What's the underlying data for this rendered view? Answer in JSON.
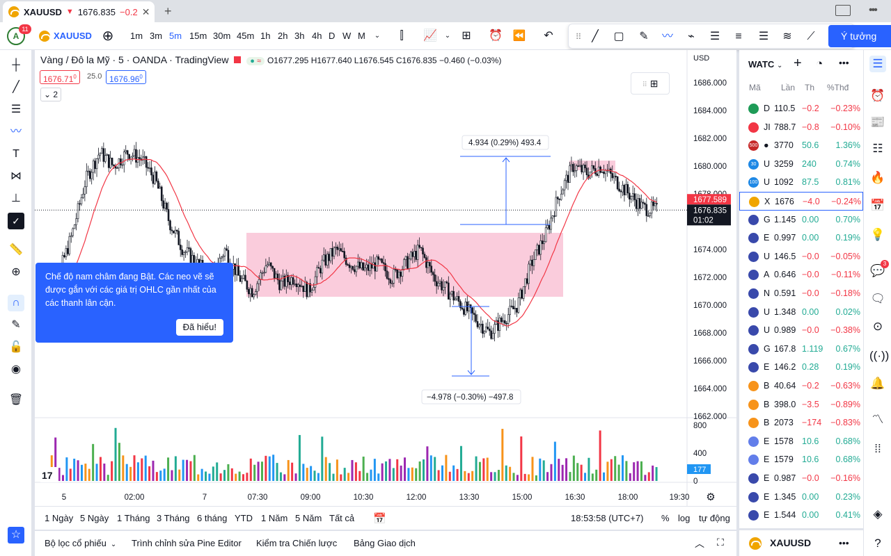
{
  "browser": {
    "tab_symbol": "XAUUSD",
    "tab_arrow": "▼",
    "tab_price": "1676.835",
    "tab_change": "−0.2"
  },
  "toolbar": {
    "avatar_letter": "A",
    "avatar_badge": "11",
    "symbol": "XAUUSD",
    "intervals": [
      "1m",
      "3m",
      "5m",
      "15m",
      "30m",
      "45m",
      "1h",
      "2h",
      "3h",
      "4h",
      "D",
      "W",
      "M"
    ],
    "active_interval": "5m",
    "ideas_label": "Ý tưởng"
  },
  "chart": {
    "legend_title": "Vàng / Đô la Mỹ · 5 · OANDA · TradingView",
    "ohlc": {
      "o_label": "O",
      "o": "1677.295",
      "h_label": "H",
      "h": "1677.640",
      "l_label": "L",
      "l": "1676.545",
      "c_label": "C",
      "c": "1676.835",
      "change": "−0.460 (−0.03%)"
    },
    "bid": "1676.71",
    "bid_sup": "0",
    "spread": "25.0",
    "ask": "1676.96",
    "ask_sup": "0",
    "collapse_count": "2",
    "currency": "USD",
    "current_price": "1676.835",
    "countdown": "01:02",
    "tag_price": "1677.589",
    "measure_up": "4.934 (0.29%) 493.4",
    "measure_down": "−4.978 (−0.30%) −497.8",
    "volume_tag": "177",
    "price_ticks": [
      "1686.000",
      "1684.000",
      "1682.000",
      "1680.000",
      "1678.000",
      "1676.000",
      "1674.000",
      "1672.000",
      "1670.000",
      "1668.000",
      "1666.000",
      "1664.000",
      "1662.000"
    ],
    "volume_ticks": [
      "800",
      "400",
      "0"
    ],
    "time_ticks": [
      "5",
      "02:00",
      "7",
      "07:30",
      "09:00",
      "10:30",
      "12:00",
      "13:30",
      "15:00",
      "16:30",
      "18:00",
      "19:30"
    ]
  },
  "chart_data": {
    "type": "candlestick",
    "title": "Vàng / Đô la Mỹ · 5 · OANDA",
    "ylim": [
      1662,
      1687
    ],
    "close_points": [
      1671,
      1672,
      1675,
      1679,
      1681,
      1680,
      1681,
      1680.5,
      1679,
      1676,
      1674,
      1673,
      1672,
      1674,
      1672,
      1671,
      1673,
      1671.5,
      1672,
      1671,
      1673,
      1674,
      1673,
      1672.5,
      1673,
      1672,
      1673,
      1674,
      1672,
      1671,
      1670,
      1669,
      1668,
      1669,
      1670,
      1673,
      1675,
      1678,
      1680,
      1679.5,
      1680,
      1679,
      1678,
      1677,
      1676.835
    ]
  },
  "timebar": {
    "ranges": [
      "1 Ngày",
      "5 Ngày",
      "1 Tháng",
      "3 Tháng",
      "6 tháng",
      "YTD",
      "1 Năm",
      "5 Năm",
      "Tất cả"
    ],
    "clock": "18:53:58 (UTC+7)",
    "pct": "%",
    "log": "log",
    "auto": "tự động"
  },
  "bottom_tabs": [
    "Bộ lọc cổ phiếu",
    "Trình chỉnh sửa Pine Editor",
    "Kiểm tra Chiến lược",
    "Bảng Giao dịch"
  ],
  "tooltip": {
    "text": "Chế độ nam châm đang Bật. Các neo vẽ sẽ được gắn với các giá trị OHLC gần nhất của các thanh lân cận.",
    "button": "Đã hiểu!"
  },
  "watchlist": {
    "title": "WATC",
    "headers": [
      "Mã",
      "Lần",
      "Th",
      "%Thđ"
    ],
    "rows": [
      {
        "icon": "D",
        "sym": "D",
        "last": "110.5",
        "chg": "−0.2",
        "pct": "−0.23%",
        "up": false,
        "color": "#1e9b57"
      },
      {
        "icon": "●",
        "sym": "JI",
        "last": "788.7",
        "chg": "−0.8",
        "pct": "−0.10%",
        "up": false,
        "color": "#f23645"
      },
      {
        "icon": "500",
        "sym": "●",
        "last": "3770",
        "chg": "50.6",
        "pct": "1.36%",
        "up": true,
        "color": "#c62828"
      },
      {
        "icon": "30",
        "sym": "U",
        "last": "3259",
        "chg": "240",
        "pct": "0.74%",
        "up": true,
        "color": "#1e88e5"
      },
      {
        "icon": "100",
        "sym": "U",
        "last": "1092",
        "chg": "87.5",
        "pct": "0.81%",
        "up": true,
        "color": "#1e88e5"
      },
      {
        "icon": "X",
        "sym": "X",
        "last": "1676",
        "chg": "−4.0",
        "pct": "−0.24%",
        "up": false,
        "color": "#f0a500"
      },
      {
        "icon": "G",
        "sym": "G",
        "last": "1.145",
        "chg": "0.00",
        "pct": "0.70%",
        "up": true,
        "color": "#3949ab"
      },
      {
        "icon": "E",
        "sym": "E",
        "last": "0.997",
        "chg": "0.00",
        "pct": "0.19%",
        "up": true,
        "color": "#3949ab"
      },
      {
        "icon": "U",
        "sym": "U",
        "last": "146.5",
        "chg": "−0.0",
        "pct": "−0.05%",
        "up": false,
        "color": "#3949ab"
      },
      {
        "icon": "A",
        "sym": "A",
        "last": "0.646",
        "chg": "−0.0",
        "pct": "−0.11%",
        "up": false,
        "color": "#3949ab"
      },
      {
        "icon": "N",
        "sym": "N",
        "last": "0.591",
        "chg": "−0.0",
        "pct": "−0.18%",
        "up": false,
        "color": "#3949ab"
      },
      {
        "icon": "U",
        "sym": "U",
        "last": "1.348",
        "chg": "0.00",
        "pct": "0.02%",
        "up": true,
        "color": "#3949ab"
      },
      {
        "icon": "U",
        "sym": "U",
        "last": "0.989",
        "chg": "−0.0",
        "pct": "−0.38%",
        "up": false,
        "color": "#3949ab"
      },
      {
        "icon": "G",
        "sym": "G",
        "last": "167.8",
        "chg": "1.119",
        "pct": "0.67%",
        "up": true,
        "color": "#3949ab"
      },
      {
        "icon": "E",
        "sym": "E",
        "last": "146.2",
        "chg": "0.28",
        "pct": "0.19%",
        "up": true,
        "color": "#3949ab"
      },
      {
        "icon": "B",
        "sym": "B",
        "last": "40.64",
        "chg": "−0.2",
        "pct": "−0.63%",
        "up": false,
        "color": "#f7931a"
      },
      {
        "icon": "B",
        "sym": "B",
        "last": "398.0",
        "chg": "−3.5",
        "pct": "−0.89%",
        "up": false,
        "color": "#f7931a"
      },
      {
        "icon": "B",
        "sym": "B",
        "last": "2073",
        "chg": "−174",
        "pct": "−0.83%",
        "up": false,
        "color": "#f7931a"
      },
      {
        "icon": "E",
        "sym": "E",
        "last": "1578",
        "chg": "10.6",
        "pct": "0.68%",
        "up": true,
        "color": "#627eea"
      },
      {
        "icon": "E",
        "sym": "E",
        "last": "1579",
        "chg": "10.6",
        "pct": "0.68%",
        "up": true,
        "color": "#627eea"
      },
      {
        "icon": "E",
        "sym": "E",
        "last": "0.987",
        "chg": "−0.0",
        "pct": "−0.16%",
        "up": false,
        "color": "#3949ab"
      },
      {
        "icon": "E",
        "sym": "E",
        "last": "1.345",
        "chg": "0.00",
        "pct": "0.23%",
        "up": true,
        "color": "#3949ab"
      },
      {
        "icon": "E",
        "sym": "E",
        "last": "1.544",
        "chg": "0.00",
        "pct": "0.41%",
        "up": true,
        "color": "#3949ab"
      }
    ],
    "bottom_symbol": "XAUUSD"
  },
  "colors": {
    "up": "#22ab94",
    "down": "#f23645",
    "accent": "#2962ff",
    "rect": "#f8bbd0"
  }
}
